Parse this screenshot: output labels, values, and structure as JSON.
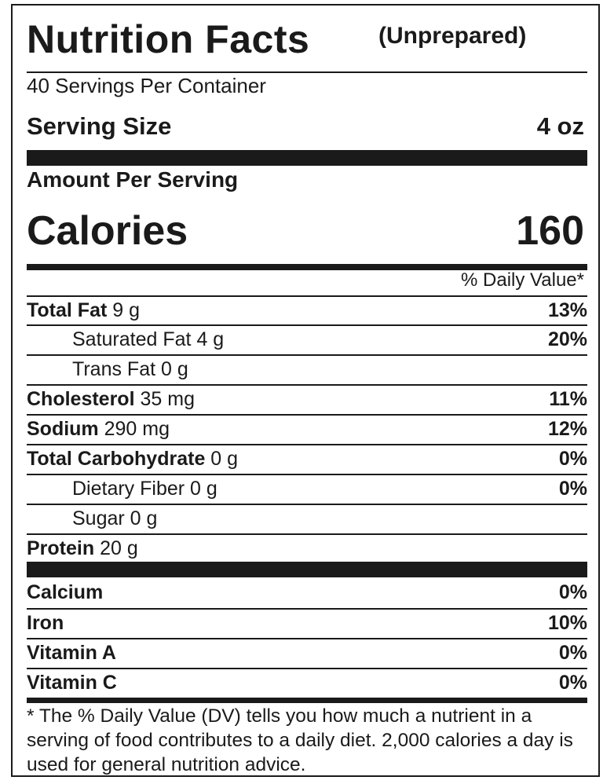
{
  "title": "Nutrition Facts",
  "title_qualifier": "(Unprepared)",
  "servings_per_container": "40 Servings Per Container",
  "serving_size_label": "Serving Size",
  "serving_size_value": "4 oz",
  "amount_per_serving": "Amount Per Serving",
  "calories_label": "Calories",
  "calories_value": "160",
  "daily_value_header": "% Daily Value*",
  "nutrients": [
    {
      "name": "Total Fat",
      "amount": "9 g",
      "dv": "13%"
    },
    {
      "name": "Saturated Fat",
      "amount": "4 g",
      "dv": "20%"
    },
    {
      "name": "Trans Fat",
      "amount": "0 g",
      "dv": ""
    },
    {
      "name": "Cholesterol",
      "amount": "35 mg",
      "dv": "11%"
    },
    {
      "name": "Sodium",
      "amount": "290 mg",
      "dv": "12%"
    },
    {
      "name": "Total Carbohydrate",
      "amount": "0 g",
      "dv": "0%"
    },
    {
      "name": "Dietary Fiber",
      "amount": "0 g",
      "dv": "0%"
    },
    {
      "name": "Sugar",
      "amount": "0 g",
      "dv": ""
    },
    {
      "name": "Protein",
      "amount": "20 g",
      "dv": ""
    }
  ],
  "vitamins": [
    {
      "name": "Calcium",
      "dv": "0%"
    },
    {
      "name": "Iron",
      "dv": "10%"
    },
    {
      "name": "Vitamin A",
      "dv": "0%"
    },
    {
      "name": "Vitamin C",
      "dv": "0%"
    }
  ],
  "footnote": "* The % Daily Value (DV) tells you how much a nutrient in a serving of food contributes to a daily diet. 2,000 calories a day is used for general nutrition advice."
}
